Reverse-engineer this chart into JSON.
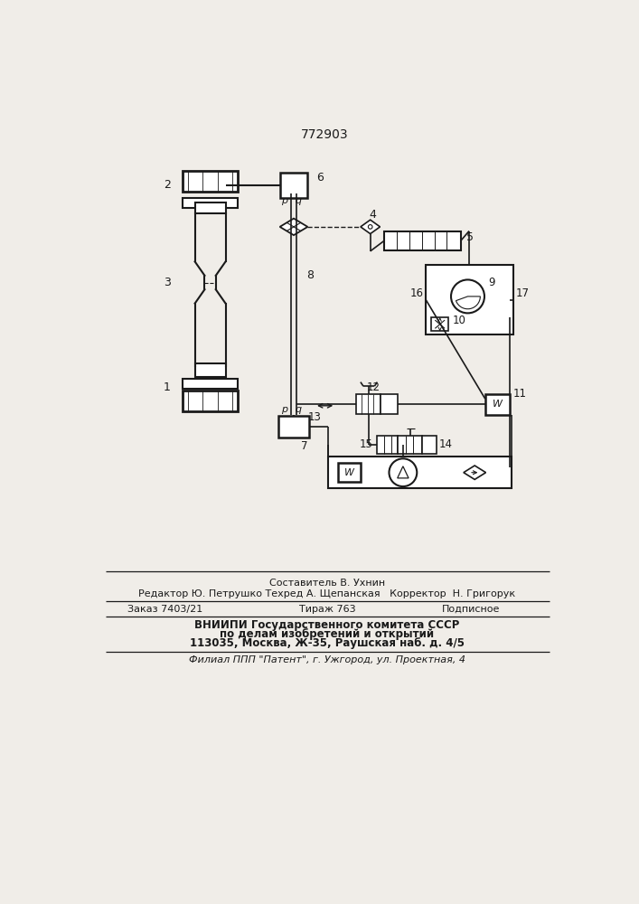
{
  "title": "772903",
  "bg_color": "#f0ede8",
  "line_color": "#1a1a1a",
  "text_color": "#1a1a1a",
  "footer_lines": [
    "Составитель В. Ухнин",
    "Редактор Ю. Петрушко Техред А. Щепанская   Корректор  Н. Григорук",
    "Заказ 7403/21          Тираж 763          Подписное",
    "ВНИИПИ Государственного комитета СССР",
    "по делам изобретений и открытий",
    "113035, Москва, Ж-35, Раушская наб. д. 4/5",
    "Филиал ППП \"Патент\", г. Ужгород, ул. Проектная, 4"
  ]
}
